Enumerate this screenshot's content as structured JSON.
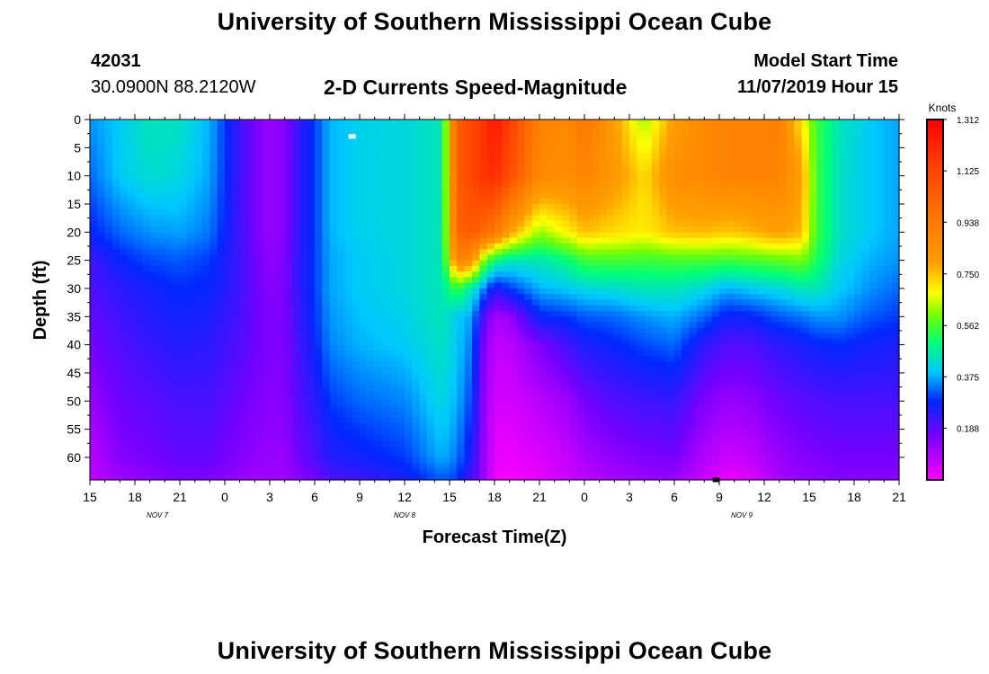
{
  "header": {
    "title": "University of Southern Mississippi Ocean Cube",
    "station_id": "42031",
    "station_coords": "30.0900N 88.2120W",
    "plot_title": "2-D Currents Speed-Magnitude",
    "model_start_label": "Model Start Time",
    "model_start_value": "11/07/2019 Hour 15"
  },
  "footer": {
    "title": "University of Southern Mississippi Ocean Cube"
  },
  "chart_data": {
    "type": "heatmap",
    "title": "2-D Currents Speed-Magnitude",
    "xlabel": "Forecast Time(Z)",
    "ylabel": "Depth (ft)",
    "x_unit": "hours since 11/07/2019 15Z",
    "xlim": [
      0,
      54
    ],
    "x_ticks": [
      {
        "x": 0,
        "label": "15"
      },
      {
        "x": 3,
        "label": "18"
      },
      {
        "x": 6,
        "label": "21"
      },
      {
        "x": 9,
        "label": "0"
      },
      {
        "x": 12,
        "label": "3"
      },
      {
        "x": 15,
        "label": "6"
      },
      {
        "x": 18,
        "label": "9"
      },
      {
        "x": 21,
        "label": "12"
      },
      {
        "x": 24,
        "label": "15"
      },
      {
        "x": 27,
        "label": "18"
      },
      {
        "x": 30,
        "label": "21"
      },
      {
        "x": 33,
        "label": "0"
      },
      {
        "x": 36,
        "label": "3"
      },
      {
        "x": 39,
        "label": "6"
      },
      {
        "x": 42,
        "label": "9"
      },
      {
        "x": 45,
        "label": "12"
      },
      {
        "x": 48,
        "label": "15"
      },
      {
        "x": 51,
        "label": "18"
      },
      {
        "x": 54,
        "label": "21"
      }
    ],
    "date_labels": [
      {
        "x": 4.5,
        "label": "NOV  7"
      },
      {
        "x": 21,
        "label": "NOV  8"
      },
      {
        "x": 43.5,
        "label": "NOV  9"
      }
    ],
    "ylim": [
      0,
      64
    ],
    "y_ticks": [
      0,
      5,
      10,
      15,
      20,
      25,
      30,
      35,
      40,
      45,
      50,
      55,
      60
    ],
    "colorbar": {
      "unit": "Knots",
      "min": 0,
      "max": 1.312,
      "ticks": [
        "1.312",
        "1.125",
        "0.938",
        "0.750",
        "0.562",
        "0.375",
        "0.188"
      ],
      "tick_values": [
        1.312,
        1.125,
        0.938,
        0.75,
        0.562,
        0.375,
        0.188
      ]
    },
    "speed_knots": {
      "grid_note": "approximate values read from the color field; x in hours, depth in ft",
      "x": [
        0,
        2,
        4,
        6,
        8,
        10,
        11,
        12,
        13,
        14,
        15,
        16,
        18,
        21,
        23.5,
        24.5,
        25.5,
        26.3,
        27,
        28,
        30,
        32,
        33,
        35,
        37,
        39,
        41,
        42.5,
        44,
        46,
        47.5,
        48.5,
        50,
        52,
        54
      ],
      "depths": [
        0,
        10,
        20,
        25,
        30,
        35,
        40,
        50,
        60,
        64
      ],
      "values": [
        [
          0.36,
          0.33,
          0.28,
          0.22,
          0.2,
          0.18,
          0.16,
          0.12,
          0.08,
          0.07
        ],
        [
          0.4,
          0.4,
          0.33,
          0.28,
          0.24,
          0.22,
          0.2,
          0.17,
          0.14,
          0.11
        ],
        [
          0.45,
          0.43,
          0.36,
          0.31,
          0.27,
          0.25,
          0.23,
          0.19,
          0.16,
          0.13
        ],
        [
          0.44,
          0.42,
          0.37,
          0.32,
          0.29,
          0.27,
          0.25,
          0.21,
          0.18,
          0.15
        ],
        [
          0.38,
          0.37,
          0.34,
          0.3,
          0.28,
          0.26,
          0.24,
          0.21,
          0.18,
          0.15
        ],
        [
          0.22,
          0.22,
          0.22,
          0.22,
          0.22,
          0.21,
          0.2,
          0.17,
          0.14,
          0.12
        ],
        [
          0.16,
          0.16,
          0.16,
          0.17,
          0.17,
          0.17,
          0.17,
          0.15,
          0.13,
          0.11
        ],
        [
          0.12,
          0.12,
          0.12,
          0.13,
          0.14,
          0.15,
          0.15,
          0.14,
          0.12,
          0.11
        ],
        [
          0.14,
          0.14,
          0.14,
          0.15,
          0.15,
          0.15,
          0.15,
          0.14,
          0.12,
          0.11
        ],
        [
          0.24,
          0.24,
          0.24,
          0.24,
          0.24,
          0.23,
          0.22,
          0.2,
          0.17,
          0.14
        ],
        [
          0.3,
          0.3,
          0.3,
          0.3,
          0.3,
          0.29,
          0.28,
          0.24,
          0.2,
          0.16
        ],
        [
          0.38,
          0.38,
          0.38,
          0.37,
          0.37,
          0.36,
          0.35,
          0.3,
          0.25,
          0.2
        ],
        [
          0.41,
          0.41,
          0.41,
          0.4,
          0.4,
          0.39,
          0.38,
          0.33,
          0.27,
          0.22
        ],
        [
          0.42,
          0.42,
          0.42,
          0.42,
          0.42,
          0.41,
          0.4,
          0.35,
          0.3,
          0.26
        ],
        [
          0.45,
          0.45,
          0.45,
          0.45,
          0.45,
          0.45,
          0.44,
          0.42,
          0.38,
          0.32
        ],
        [
          1.05,
          1.05,
          1.02,
          0.9,
          0.55,
          0.4,
          0.4,
          0.38,
          0.34,
          0.3
        ],
        [
          1.12,
          1.12,
          1.05,
          0.85,
          0.45,
          0.37,
          0.34,
          0.3,
          0.25,
          0.2
        ],
        [
          1.18,
          1.18,
          1.0,
          0.6,
          0.35,
          0.2,
          0.15,
          0.13,
          0.12,
          0.12
        ],
        [
          1.25,
          1.2,
          0.95,
          0.5,
          0.25,
          0.1,
          0.07,
          0.05,
          0.03,
          0.02
        ],
        [
          1.15,
          1.1,
          0.8,
          0.45,
          0.3,
          0.12,
          0.08,
          0.05,
          0.02,
          0.01
        ],
        [
          0.9,
          0.88,
          0.62,
          0.45,
          0.38,
          0.28,
          0.15,
          0.08,
          0.04,
          0.03
        ],
        [
          0.88,
          0.86,
          0.7,
          0.5,
          0.4,
          0.3,
          0.22,
          0.12,
          0.07,
          0.06
        ],
        [
          0.95,
          0.9,
          0.75,
          0.55,
          0.42,
          0.32,
          0.26,
          0.16,
          0.1,
          0.08
        ],
        [
          0.8,
          0.82,
          0.72,
          0.56,
          0.43,
          0.33,
          0.28,
          0.2,
          0.13,
          0.1
        ],
        [
          0.62,
          0.72,
          0.7,
          0.55,
          0.45,
          0.36,
          0.31,
          0.22,
          0.15,
          0.12
        ],
        [
          0.8,
          0.86,
          0.75,
          0.56,
          0.45,
          0.38,
          0.33,
          0.23,
          0.16,
          0.12
        ],
        [
          0.88,
          0.88,
          0.76,
          0.56,
          0.42,
          0.33,
          0.24,
          0.15,
          0.09,
          0.06
        ],
        [
          0.9,
          0.9,
          0.74,
          0.55,
          0.38,
          0.27,
          0.2,
          0.12,
          0.06,
          0.02
        ],
        [
          0.9,
          0.9,
          0.76,
          0.56,
          0.4,
          0.28,
          0.2,
          0.13,
          0.07,
          0.04
        ],
        [
          0.92,
          0.9,
          0.8,
          0.58,
          0.42,
          0.32,
          0.24,
          0.17,
          0.12,
          0.1
        ],
        [
          0.7,
          0.8,
          0.76,
          0.6,
          0.45,
          0.34,
          0.26,
          0.19,
          0.14,
          0.12
        ],
        [
          0.55,
          0.55,
          0.55,
          0.52,
          0.45,
          0.36,
          0.28,
          0.2,
          0.15,
          0.13
        ],
        [
          0.45,
          0.44,
          0.44,
          0.42,
          0.4,
          0.36,
          0.29,
          0.21,
          0.16,
          0.14
        ],
        [
          0.4,
          0.4,
          0.4,
          0.38,
          0.36,
          0.32,
          0.27,
          0.21,
          0.16,
          0.14
        ],
        [
          0.37,
          0.37,
          0.37,
          0.36,
          0.33,
          0.3,
          0.26,
          0.21,
          0.16,
          0.14
        ]
      ]
    },
    "markers": [
      {
        "x": 17.5,
        "depth": 3,
        "color": "#ffffff"
      },
      {
        "x": 41.8,
        "depth": 64,
        "color": "#000000"
      }
    ]
  }
}
